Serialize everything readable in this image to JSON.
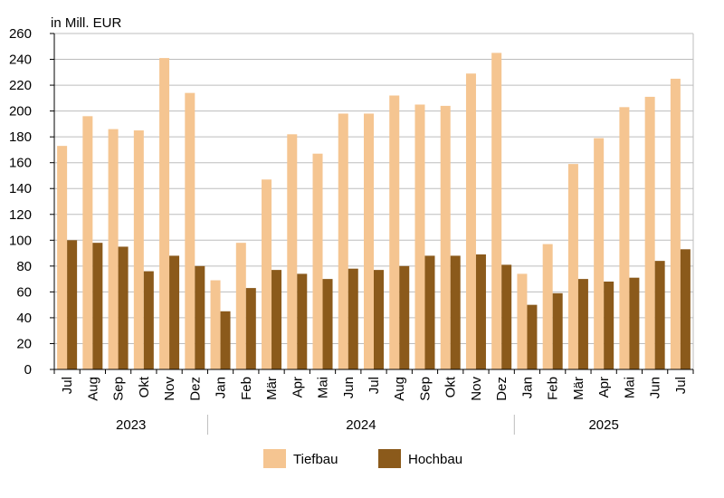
{
  "chart_data": {
    "type": "bar",
    "unit_label": "in Mill. EUR",
    "ylim": [
      0,
      260
    ],
    "yticks": [
      0,
      20,
      40,
      60,
      80,
      100,
      120,
      140,
      160,
      180,
      200,
      220,
      240,
      260
    ],
    "grid": true,
    "legend_position": "bottom",
    "categories": [
      "Jul",
      "Aug",
      "Sep",
      "Okt",
      "Nov",
      "Dez",
      "Jan",
      "Feb",
      "Mär",
      "Apr",
      "Mai",
      "Jun",
      "Jul",
      "Aug",
      "Sep",
      "Okt",
      "Nov",
      "Dez",
      "Jan",
      "Feb",
      "Mär",
      "Apr",
      "Mai",
      "Jun",
      "Jul"
    ],
    "year_groups": [
      {
        "label": "2023",
        "count": 6
      },
      {
        "label": "2024",
        "count": 12
      },
      {
        "label": "2025",
        "count": 7
      }
    ],
    "series": [
      {
        "name": "Tiefbau",
        "color": "#f5c591",
        "values": [
          173,
          196,
          186,
          185,
          241,
          214,
          69,
          98,
          147,
          182,
          167,
          198,
          198,
          212,
          205,
          204,
          229,
          245,
          74,
          97,
          159,
          179,
          203,
          211,
          225
        ]
      },
      {
        "name": "Hochbau",
        "color": "#8b5a1b",
        "values": [
          100,
          98,
          95,
          76,
          88,
          80,
          45,
          63,
          77,
          74,
          70,
          78,
          77,
          80,
          88,
          88,
          89,
          81,
          50,
          59,
          70,
          68,
          71,
          84,
          93
        ]
      }
    ]
  }
}
